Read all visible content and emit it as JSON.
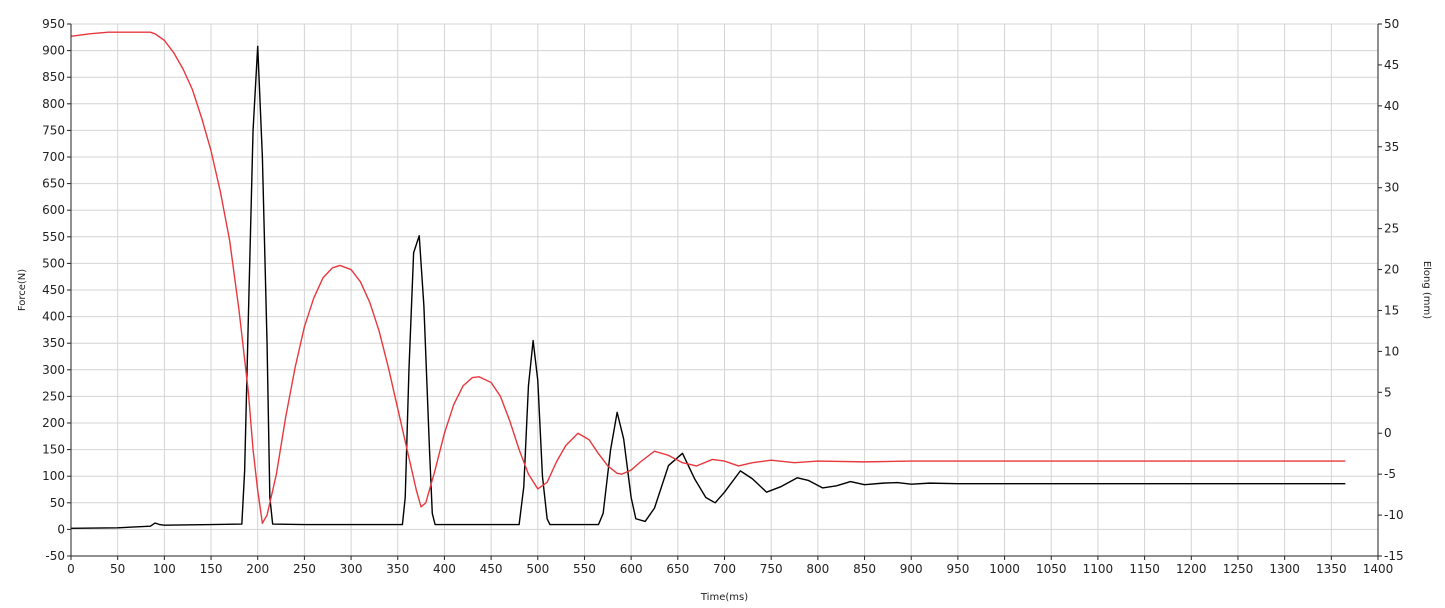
{
  "chart_data": {
    "type": "line",
    "xlabel": "Time(ms)",
    "ylabel_left": "Force(N)",
    "ylabel_right": "Elong (mm)",
    "xlim": [
      0,
      1400
    ],
    "ylim_left": [
      -50,
      950
    ],
    "ylim_right": [
      -15,
      50
    ],
    "x_ticks": [
      0,
      50,
      100,
      150,
      200,
      250,
      300,
      350,
      400,
      450,
      500,
      550,
      600,
      650,
      700,
      750,
      800,
      850,
      900,
      950,
      1000,
      1050,
      1100,
      1150,
      1200,
      1250,
      1300,
      1350,
      1400
    ],
    "y_left_ticks": [
      -50,
      0,
      50,
      100,
      150,
      200,
      250,
      300,
      350,
      400,
      450,
      500,
      550,
      600,
      650,
      700,
      750,
      800,
      850,
      900,
      950
    ],
    "y_right_ticks": [
      -15,
      -10,
      -5,
      0,
      5,
      10,
      15,
      20,
      25,
      30,
      35,
      40,
      45,
      50
    ],
    "grid": true,
    "series": [
      {
        "axis": "left",
        "color": "#000000",
        "x": [
          0,
          50,
          85,
          90,
          95,
          100,
          150,
          183,
          186,
          190,
          195,
          200,
          205,
          210,
          213,
          216,
          250,
          300,
          355,
          358,
          362,
          367,
          373,
          378,
          384,
          387,
          390,
          450,
          480,
          485,
          490,
          495,
          500,
          505,
          510,
          513,
          550,
          565,
          570,
          578,
          585,
          592,
          600,
          605,
          615,
          625,
          640,
          655,
          668,
          680,
          690,
          700,
          717,
          730,
          745,
          760,
          778,
          790,
          805,
          820,
          835,
          850,
          870,
          885,
          900,
          920,
          950,
          1000,
          1100,
          1200,
          1300,
          1365
        ],
        "y": [
          2,
          3,
          6,
          12,
          9,
          8,
          9,
          10,
          110,
          400,
          750,
          908,
          700,
          350,
          60,
          10,
          9,
          9,
          9,
          60,
          300,
          520,
          552,
          420,
          150,
          30,
          9,
          9,
          9,
          80,
          270,
          355,
          280,
          100,
          20,
          9,
          9,
          9,
          30,
          150,
          220,
          170,
          60,
          20,
          15,
          40,
          120,
          143,
          95,
          60,
          50,
          70,
          110,
          95,
          70,
          80,
          97,
          92,
          78,
          82,
          90,
          84,
          87,
          88,
          85,
          87,
          86,
          86,
          86,
          86,
          86,
          86
        ]
      },
      {
        "axis": "right",
        "color": "#e8383d",
        "x": [
          0,
          20,
          40,
          60,
          80,
          85,
          90,
          100,
          110,
          120,
          130,
          140,
          150,
          160,
          170,
          180,
          190,
          195,
          200,
          205,
          210,
          220,
          230,
          240,
          250,
          260,
          270,
          280,
          288,
          300,
          310,
          320,
          330,
          340,
          350,
          360,
          370,
          375,
          380,
          390,
          400,
          410,
          420,
          430,
          437,
          450,
          460,
          470,
          480,
          490,
          500,
          510,
          520,
          530,
          543,
          555,
          565,
          575,
          585,
          590,
          600,
          610,
          625,
          640,
          655,
          670,
          687,
          700,
          715,
          730,
          750,
          775,
          800,
          850,
          900,
          1000,
          1100,
          1200,
          1300,
          1365
        ],
        "y": [
          48.5,
          48.8,
          49,
          49,
          49,
          49,
          48.8,
          48,
          46.5,
          44.5,
          42,
          38.5,
          34.5,
          29.5,
          23.5,
          15,
          5,
          -2,
          -7,
          -11,
          -10,
          -5,
          2,
          8,
          13,
          16.5,
          19,
          20.2,
          20.5,
          20,
          18.5,
          16,
          12.5,
          8,
          3,
          -2,
          -7,
          -9,
          -8.5,
          -4.5,
          0,
          3.5,
          5.8,
          6.8,
          6.9,
          6.2,
          4.5,
          1.5,
          -2,
          -5,
          -6.8,
          -6,
          -3.5,
          -1.5,
          0,
          -0.8,
          -2.5,
          -4,
          -4.9,
          -5,
          -4.5,
          -3.5,
          -2.2,
          -2.7,
          -3.6,
          -4,
          -3.2,
          -3.4,
          -4,
          -3.6,
          -3.3,
          -3.6,
          -3.4,
          -3.5,
          -3.4,
          -3.4,
          -3.4,
          -3.4,
          -3.4,
          -3.4
        ]
      }
    ]
  }
}
